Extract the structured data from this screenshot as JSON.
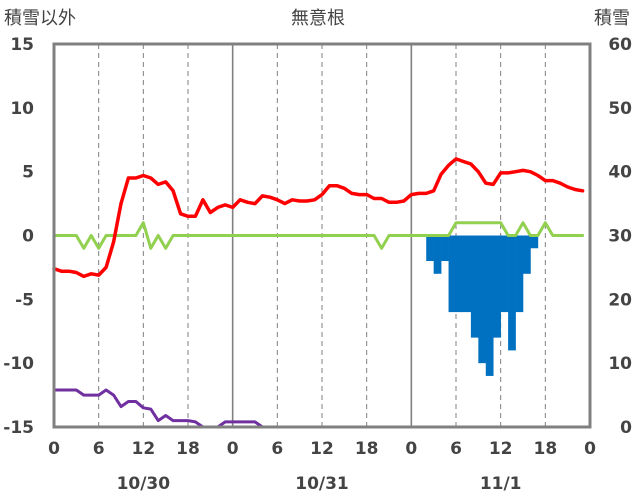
{
  "chart_data": {
    "type": "line",
    "title": "無意根",
    "ylabel_left": "積雪以外",
    "ylabel_right": "積雪",
    "ylim_left": [
      -15,
      15
    ],
    "yticks_left": [
      15,
      10,
      5,
      0,
      -5,
      -10,
      -15
    ],
    "ylim_right": [
      0,
      60
    ],
    "yticks_right": [
      60,
      50,
      40,
      30,
      20,
      10,
      0
    ],
    "xlim_hours": [
      0,
      72
    ],
    "xtick_labels": [
      "0",
      "6",
      "12",
      "18",
      "0",
      "6",
      "12",
      "18",
      "0",
      "6",
      "12",
      "18",
      "0"
    ],
    "date_labels": [
      "10/30",
      "10/31",
      "11/1"
    ],
    "grid": true,
    "colors": {
      "frame": "#808080",
      "temperature": "#ff0000",
      "green_series": "#92d050",
      "purple_series": "#7030a0",
      "snowfall_bars": "#0070c0"
    },
    "series": [
      {
        "key": "temperature",
        "axis": "left",
        "color": "#ff0000",
        "x": [
          0,
          1,
          2,
          3,
          4,
          5,
          6,
          7,
          8,
          9,
          10,
          11,
          12,
          13,
          14,
          15,
          16,
          17,
          18,
          19,
          20,
          21,
          22,
          23,
          24,
          25,
          26,
          27,
          28,
          29,
          30,
          31,
          32,
          33,
          34,
          35,
          36,
          37,
          38,
          39,
          40,
          41,
          42,
          43,
          44,
          45,
          46,
          47,
          48,
          49,
          50,
          51,
          52,
          53,
          54,
          55,
          56,
          57,
          58,
          59,
          60,
          61,
          62,
          63,
          64,
          65,
          66,
          67,
          68,
          69,
          70,
          71
        ],
        "y": [
          -2.6,
          -2.8,
          -2.8,
          -2.9,
          -3.2,
          -3.0,
          -3.1,
          -2.5,
          -0.5,
          2.5,
          4.5,
          4.5,
          4.7,
          4.5,
          4.0,
          4.2,
          3.5,
          1.7,
          1.5,
          1.5,
          2.8,
          1.8,
          2.2,
          2.4,
          2.2,
          2.8,
          2.6,
          2.5,
          3.1,
          3.0,
          2.8,
          2.5,
          2.8,
          2.7,
          2.7,
          2.8,
          3.2,
          3.9,
          3.9,
          3.7,
          3.3,
          3.2,
          3.2,
          2.9,
          2.9,
          2.6,
          2.6,
          2.7,
          3.2,
          3.3,
          3.3,
          3.5,
          4.8,
          5.5,
          6.0,
          5.8,
          5.6,
          5.0,
          4.1,
          4.0,
          4.9,
          4.9,
          5.0,
          5.1,
          5.0,
          4.7,
          4.3,
          4.3,
          4.1,
          3.8,
          3.6,
          3.5
        ]
      },
      {
        "key": "green_series",
        "axis": "left",
        "color": "#92d050",
        "x": [
          0,
          1,
          2,
          3,
          4,
          5,
          6,
          7,
          8,
          9,
          10,
          11,
          12,
          13,
          14,
          15,
          16,
          17,
          18,
          19,
          20,
          21,
          22,
          23,
          24,
          25,
          26,
          27,
          28,
          29,
          30,
          31,
          32,
          33,
          34,
          35,
          36,
          37,
          38,
          39,
          40,
          41,
          42,
          43,
          44,
          45,
          46,
          47,
          48,
          49,
          50,
          51,
          52,
          53,
          54,
          55,
          56,
          57,
          58,
          59,
          60,
          61,
          62,
          63,
          64,
          65,
          66,
          67,
          68,
          69,
          70,
          71
        ],
        "y": [
          0,
          0,
          0,
          0,
          -1,
          0,
          -1,
          0,
          0,
          0,
          0,
          0,
          1,
          -1,
          0,
          -1,
          0,
          0,
          0,
          0,
          0,
          0,
          0,
          0,
          0,
          0,
          0,
          0,
          0,
          0,
          0,
          0,
          0,
          0,
          0,
          0,
          0,
          0,
          0,
          0,
          0,
          0,
          0,
          0,
          -1,
          0,
          0,
          0,
          0,
          0,
          0,
          0,
          0,
          0,
          1,
          1,
          1,
          1,
          1,
          1,
          1,
          0,
          0,
          1,
          0,
          0,
          1,
          0,
          0,
          0,
          0,
          0
        ]
      },
      {
        "key": "purple_series",
        "axis": "left",
        "color": "#7030a0",
        "x": [
          0,
          1,
          2,
          3,
          4,
          5,
          6,
          7,
          8,
          9,
          10,
          11,
          12,
          13,
          14,
          15,
          16,
          17,
          18,
          19,
          20,
          21,
          22,
          23,
          24,
          25,
          26,
          27,
          28,
          29,
          30,
          31,
          32,
          33,
          34,
          35,
          36,
          37,
          38,
          39,
          40,
          41,
          42,
          43,
          44,
          45,
          46,
          47,
          48,
          49,
          50,
          51,
          52,
          53,
          54,
          55,
          56,
          57,
          58,
          59,
          60,
          61,
          62,
          63,
          64,
          65,
          66,
          67,
          68,
          69,
          70,
          71
        ],
        "y": [
          -12.1,
          -12.1,
          -12.1,
          -12.1,
          -12.5,
          -12.5,
          -12.5,
          -12.1,
          -12.5,
          -13.4,
          -13.0,
          -13.0,
          -13.5,
          -13.6,
          -14.5,
          -14.1,
          -14.5,
          -14.5,
          -14.5,
          -14.6,
          -15,
          -15,
          -15,
          -14.6,
          -14.6,
          -14.6,
          -14.6,
          -14.6,
          -15,
          -15,
          -15,
          -15,
          -15,
          -15,
          -15,
          -15,
          -15,
          -15,
          -15,
          -15,
          -15,
          -15,
          -15,
          -15,
          -15,
          -15,
          -15,
          -15,
          -15,
          -15,
          -15,
          -15,
          -15,
          -15,
          -15,
          -15,
          -15,
          -15,
          -15,
          -15,
          -15,
          -15,
          -15,
          -15,
          -15,
          -15,
          -15,
          -15,
          -15,
          -15,
          -15,
          -15
        ]
      },
      {
        "key": "snowfall_bars",
        "type": "bar",
        "axis": "left",
        "color": "#0070c0",
        "x": [
          50,
          51,
          52,
          53,
          54,
          55,
          56,
          57,
          58,
          59,
          60,
          61,
          62,
          63,
          64
        ],
        "y": [
          -2,
          -3,
          -2,
          -6,
          -6,
          -6,
          -8,
          -10,
          -11,
          -8,
          -6,
          -9,
          -6,
          -3,
          -1
        ]
      }
    ]
  }
}
